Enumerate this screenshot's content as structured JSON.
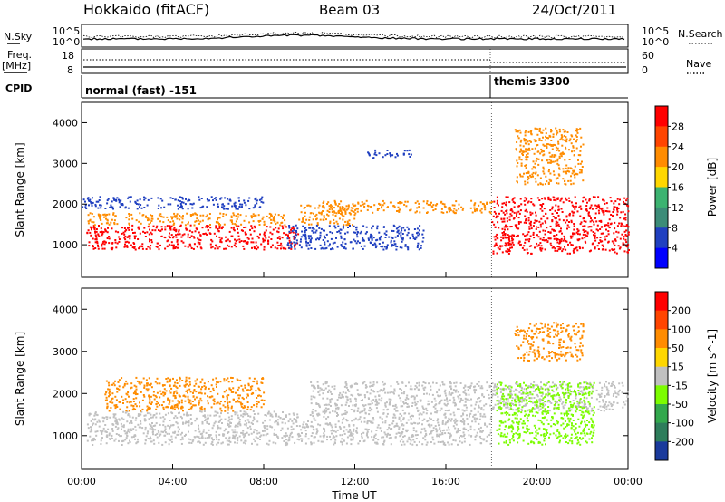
{
  "header": {
    "station": "Hokkaido (fitACF)",
    "beam": "Beam 03",
    "date": "24/Oct/2011"
  },
  "left_labels": {
    "nsky": "N.Sky",
    "freq_line1": "Freq.",
    "freq_line2": "[MHz]",
    "cpid": "CPID"
  },
  "right_labels": {
    "nsearch": "N.Search",
    "nave": "Nave"
  },
  "strip_ticks": {
    "nsky_top": "10^5",
    "nsky_bottom": "10^0",
    "freq_top": "18",
    "freq_bottom": "8",
    "nave_top": "60",
    "nave_bottom": "0"
  },
  "cpid_modes": [
    "normal (fast) -151",
    "themis 3300"
  ],
  "xaxis": {
    "label": "Time UT",
    "ticks": [
      "00:00",
      "04:00",
      "08:00",
      "12:00",
      "16:00",
      "20:00",
      "00:00"
    ]
  },
  "colors": {
    "red": "#ff0000",
    "orange": "#ff8c00",
    "yellow": "#ffd700",
    "green": "#3cb371",
    "blue": "#2040c0",
    "grey": "#c0c0c0",
    "lightgreen": "#7cfc00"
  },
  "chart_data": [
    {
      "type": "heatmap",
      "name": "power",
      "xlabel": "Time UT",
      "ylabel": "Slant Range [km]",
      "xlim": [
        0,
        24
      ],
      "ylim": [
        200,
        4500
      ],
      "yticks": [
        1000,
        2000,
        3000,
        4000
      ],
      "colorbar": {
        "label": "Power [dB]",
        "ticks": [
          "4",
          "8",
          "12",
          "16",
          "20",
          "24",
          "28"
        ],
        "colors": [
          "#0000ff",
          "#2040c0",
          "#3c8c78",
          "#3cb371",
          "#ffd700",
          "#ff8c00",
          "#ff4500",
          "#ff0000"
        ]
      },
      "regions": [
        {
          "t0": 0.2,
          "t1": 9.5,
          "r0": 900,
          "r1": 1500,
          "level": "red"
        },
        {
          "t0": 0.2,
          "t1": 9.0,
          "r0": 1500,
          "r1": 1800,
          "level": "orange"
        },
        {
          "t0": 9.5,
          "t1": 12.0,
          "r0": 1500,
          "r1": 2000,
          "level": "orange"
        },
        {
          "t0": 10.5,
          "t1": 18.0,
          "r0": 1800,
          "r1": 2100,
          "level": "orange"
        },
        {
          "t0": 18.0,
          "t1": 24.0,
          "r0": 800,
          "r1": 2200,
          "level": "red"
        },
        {
          "t0": 9.0,
          "t1": 15.0,
          "r0": 900,
          "r1": 1500,
          "level": "blue"
        },
        {
          "t0": 12.5,
          "t1": 14.5,
          "r0": 3150,
          "r1": 3350,
          "level": "blue"
        },
        {
          "t0": 19.0,
          "t1": 22.0,
          "r0": 2500,
          "r1": 3900,
          "level": "orange"
        },
        {
          "t0": 0.0,
          "t1": 8.0,
          "r0": 1900,
          "r1": 2200,
          "level": "blue"
        }
      ]
    },
    {
      "type": "heatmap",
      "name": "velocity",
      "xlabel": "Time UT",
      "ylabel": "Slant Range [km]",
      "xlim": [
        0,
        24
      ],
      "ylim": [
        200,
        4500
      ],
      "yticks": [
        1000,
        2000,
        3000,
        4000
      ],
      "colorbar": {
        "label": "Velocity [m s^-1]",
        "ticks": [
          "200",
          "100",
          "50",
          "15",
          "-15",
          "-50",
          "-100",
          "-200"
        ],
        "colors": [
          "#1a3a9c",
          "#2e7d5b",
          "#33a84d",
          "#7cfc00",
          "#c0c0c0",
          "#ffd700",
          "#ff8c00",
          "#ff4500",
          "#ff0000"
        ]
      },
      "regions": [
        {
          "t0": 0.2,
          "t1": 18.0,
          "r0": 800,
          "r1": 1600,
          "level": "grey"
        },
        {
          "t0": 10.0,
          "t1": 24.0,
          "r0": 1600,
          "r1": 2300,
          "level": "grey"
        },
        {
          "t0": 18.2,
          "t1": 22.5,
          "r0": 800,
          "r1": 2300,
          "level": "lightgreen"
        },
        {
          "t0": 19.0,
          "t1": 22.0,
          "r0": 2800,
          "r1": 3700,
          "level": "orange"
        },
        {
          "t0": 1.0,
          "t1": 8.0,
          "r0": 1600,
          "r1": 2400,
          "level": "orange"
        }
      ]
    }
  ]
}
